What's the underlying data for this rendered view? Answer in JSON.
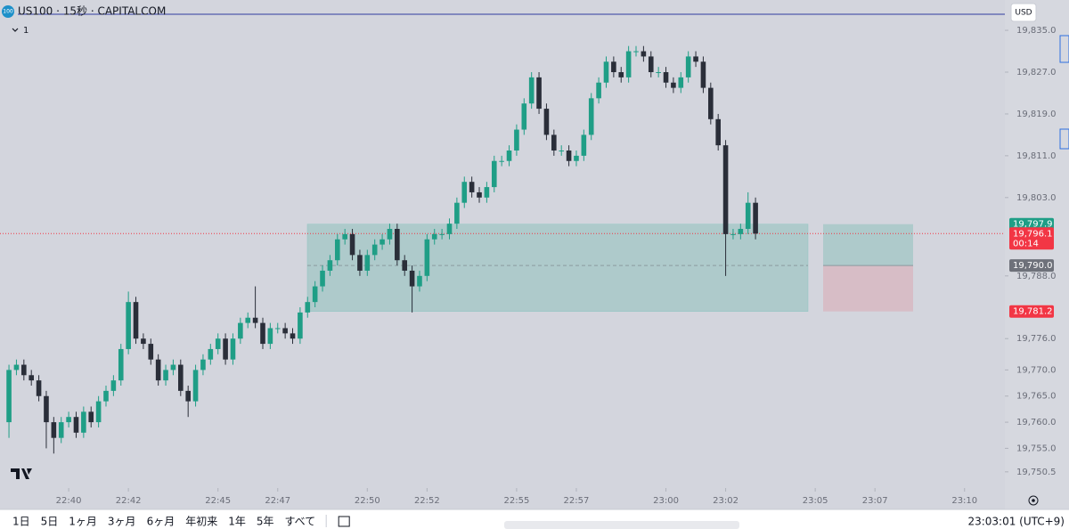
{
  "header": {
    "symbol": "US100 · 15秒 · CAPITALCOM",
    "logo": "100",
    "currency": "USD",
    "interval_toggle": "1"
  },
  "chart_data": {
    "type": "candlestick",
    "open": [
      19760,
      19770,
      19771,
      19769,
      19768,
      19765,
      19760,
      19757,
      19760,
      19761,
      19758,
      19762,
      19760,
      19764,
      19766,
      19768,
      19774,
      19783,
      19776,
      19775,
      19772,
      19768,
      19770,
      19771,
      19766,
      19764,
      19770,
      19772,
      19774,
      19776,
      19772,
      19776,
      19779,
      19780,
      19779,
      19775,
      19778,
      19778,
      19777,
      19776,
      19781,
      19783,
      19786,
      19789,
      19791,
      19795,
      19796,
      19792,
      19789,
      19792,
      19794,
      19795,
      19797,
      19791,
      19789,
      19786,
      19788,
      19795,
      19796,
      19796,
      19798,
      19802,
      19806,
      19804,
      19803,
      19805,
      19810,
      19810,
      19812,
      19816,
      19821,
      19826,
      19820,
      19815,
      19812,
      19812,
      19810,
      19811,
      19815,
      19822,
      19825,
      19829,
      19827,
      19826,
      19831,
      19831,
      19830,
      19827,
      19827,
      19825,
      19824,
      19826,
      19830,
      19829,
      19824,
      19818,
      19813,
      19796,
      19796,
      19797,
      19802
    ],
    "high": [
      19771,
      19772,
      19772,
      19770,
      19769,
      19766,
      19761,
      19761,
      19762,
      19762,
      19763,
      19763,
      19765,
      19767,
      19769,
      19775,
      19785,
      19784,
      19777,
      19776,
      19773,
      19771,
      19772,
      19772,
      19767,
      19771,
      19773,
      19775,
      19777,
      19777,
      19777,
      19780,
      19781,
      19786,
      19780,
      19779,
      19779,
      19779,
      19778,
      19782,
      19784,
      19787,
      19790,
      19792,
      19796,
      19797,
      19797,
      19793,
      19793,
      19795,
      19796,
      19798,
      19798,
      19792,
      19790,
      19789,
      19796,
      19797,
      19797,
      19799,
      19803,
      19807,
      19807,
      19805,
      19806,
      19811,
      19811,
      19813,
      19817,
      19822,
      19827,
      19827,
      19821,
      19816,
      19813,
      19813,
      19812,
      19816,
      19823,
      19826,
      19830,
      19830,
      19828,
      19832,
      19832,
      19832,
      19831,
      19828,
      19828,
      19826,
      19827,
      19831,
      19831,
      19830,
      19825,
      19819,
      19814,
      19797,
      19798,
      19804,
      19803
    ],
    "low": [
      19757,
      19769,
      19768,
      19767,
      19764,
      19755,
      19754,
      19756,
      19759,
      19757,
      19757,
      19759,
      19759,
      19763,
      19765,
      19767,
      19773,
      19775,
      19774,
      19771,
      19767,
      19767,
      19769,
      19765,
      19761,
      19763,
      19769,
      19771,
      19773,
      19771,
      19771,
      19775,
      19778,
      19778,
      19774,
      19774,
      19777,
      19776,
      19775,
      19775,
      19780,
      19782,
      19785,
      19788,
      19790,
      19794,
      19791,
      19788,
      19788,
      19791,
      19793,
      19794,
      19790,
      19788,
      19781,
      19785,
      19787,
      19794,
      19795,
      19795,
      19797,
      19801,
      19803,
      19802,
      19802,
      19804,
      19809,
      19809,
      19811,
      19815,
      19820,
      19819,
      19814,
      19811,
      19811,
      19809,
      19809,
      19810,
      19814,
      19821,
      19824,
      19826,
      19825,
      19825,
      19830,
      19829,
      19826,
      19826,
      19824,
      19823,
      19823,
      19825,
      19828,
      19823,
      19817,
      19812,
      19788,
      19795,
      19795,
      19796,
      19795
    ],
    "close": [
      19770,
      19771,
      19769,
      19768,
      19765,
      19760,
      19757,
      19760,
      19761,
      19758,
      19762,
      19760,
      19764,
      19766,
      19768,
      19774,
      19783,
      19776,
      19775,
      19772,
      19768,
      19770,
      19771,
      19766,
      19764,
      19770,
      19772,
      19774,
      19776,
      19772,
      19776,
      19779,
      19780,
      19779,
      19775,
      19778,
      19778,
      19777,
      19776,
      19781,
      19783,
      19786,
      19789,
      19791,
      19795,
      19796,
      19792,
      19789,
      19792,
      19794,
      19795,
      19797,
      19791,
      19789,
      19786,
      19788,
      19795,
      19796,
      19796,
      19798,
      19802,
      19806,
      19804,
      19803,
      19805,
      19810,
      19810,
      19812,
      19816,
      19821,
      19826,
      19820,
      19815,
      19812,
      19812,
      19810,
      19811,
      19815,
      19822,
      19825,
      19829,
      19827,
      19826,
      19831,
      19831,
      19830,
      19827,
      19827,
      19825,
      19824,
      19826,
      19830,
      19829,
      19824,
      19818,
      19813,
      19796,
      19796,
      19797,
      19802,
      19796.1
    ],
    "up_color": "#1f9e86",
    "down_color": "#2a2e39",
    "xlim": [
      -1.2,
      133.4
    ],
    "xticks": [
      {
        "value": 8,
        "label": "22:40"
      },
      {
        "value": 16,
        "label": "22:42"
      },
      {
        "value": 28,
        "label": "22:45"
      },
      {
        "value": 36,
        "label": "22:47"
      },
      {
        "value": 48,
        "label": "22:50"
      },
      {
        "value": 56,
        "label": "22:52"
      },
      {
        "value": 68,
        "label": "22:55"
      },
      {
        "value": 76,
        "label": "22:57"
      },
      {
        "value": 88,
        "label": "23:00"
      },
      {
        "value": 96,
        "label": "23:02"
      },
      {
        "value": 108,
        "label": "23:05"
      },
      {
        "value": 116,
        "label": "23:07"
      },
      {
        "value": 128,
        "label": "23:10"
      }
    ],
    "ylim": [
      19747.4,
      19837.4
    ],
    "yticks": [
      {
        "value": 19835,
        "label": "19,835.0"
      },
      {
        "value": 19827,
        "label": "19,827.0"
      },
      {
        "value": 19819,
        "label": "19,819.0"
      },
      {
        "value": 19811,
        "label": "19,811.0"
      },
      {
        "value": 19803,
        "label": "19,803.0"
      },
      {
        "value": 19788,
        "label": "19,788.0"
      },
      {
        "value": 19776,
        "label": "19,776.0"
      },
      {
        "value": 19770,
        "label": "19,770.0"
      },
      {
        "value": 19765,
        "label": "19,765.0"
      },
      {
        "value": 19760,
        "label": "19,760.0"
      },
      {
        "value": 19755,
        "label": "19,755.0"
      },
      {
        "value": 19750.5,
        "label": "19,750.5"
      }
    ],
    "last_price": {
      "value": 19796.1,
      "label": "19,796.1",
      "countdown": "00:14"
    },
    "position": {
      "target": {
        "value": 19797.9,
        "label": "19,797.9"
      },
      "entry": {
        "value": 19790.0,
        "label": "19,790.0"
      },
      "stop": {
        "value": 19781.2,
        "label": "19,781.2"
      }
    }
  },
  "footer": {
    "ranges": [
      "1日",
      "5日",
      "1ヶ月",
      "3ヶ月",
      "6ヶ月",
      "年初来",
      "1年",
      "5年",
      "すべて"
    ],
    "clock": "23:03:01 (UTC+9)"
  }
}
